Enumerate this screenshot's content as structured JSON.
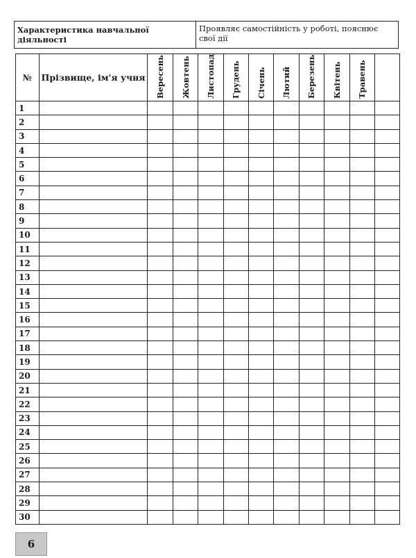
{
  "header": {
    "label": "Характеристика навчальної діяльності",
    "value": "Проявляє самостійність у роботі, пояснює свої дії"
  },
  "table": {
    "num_header": "№",
    "name_header": "Прізвище, ім'я учня",
    "months": [
      "Вересень",
      "Жовтень",
      "Листопад",
      "Грудень",
      "Січень",
      "Лютий",
      "Березень",
      "Квітень",
      "Травень",
      ""
    ],
    "rows": [
      "1",
      "2",
      "3",
      "4",
      "5",
      "6",
      "7",
      "8",
      "9",
      "10",
      "11",
      "12",
      "13",
      "14",
      "15",
      "16",
      "17",
      "18",
      "19",
      "20",
      "21",
      "22",
      "23",
      "24",
      "25",
      "26",
      "27",
      "28",
      "29",
      "30"
    ]
  },
  "page_number": "6"
}
